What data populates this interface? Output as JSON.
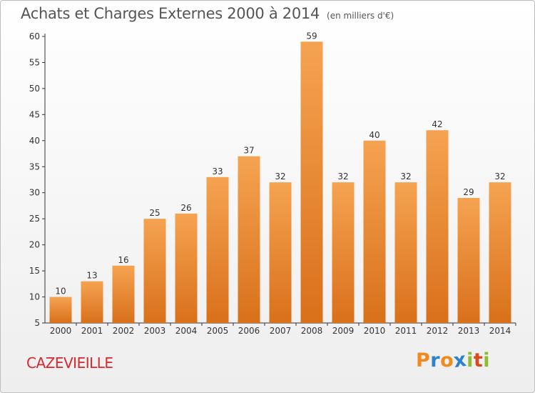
{
  "title": "Achats et Charges Externes 2000 à 2014",
  "unit_note": "(en milliers d'€)",
  "commune": "CAZEVIEILLE",
  "brand": {
    "letters": [
      "P",
      "r",
      "o",
      "x",
      "i",
      "t",
      "i"
    ],
    "colors": [
      "#f08a1c",
      "#2f82c9",
      "#f08a1c",
      "#2f82c9",
      "#8bbd2d",
      "#d94a1e",
      "#8bbd2d"
    ]
  },
  "colors": {
    "bar_top": "#f5a351",
    "bar_bottom": "#d9701a",
    "axis": "#333333",
    "grid": "#cccccc",
    "commune": "#d9272e"
  },
  "chart_data": {
    "type": "bar",
    "title": "Achats et Charges Externes 2000 à 2014",
    "xlabel": "",
    "ylabel": "",
    "categories": [
      "2000",
      "2001",
      "2002",
      "2003",
      "2004",
      "2005",
      "2006",
      "2007",
      "2008",
      "2009",
      "2010",
      "2011",
      "2012",
      "2013",
      "2014"
    ],
    "values": [
      10,
      13,
      16,
      25,
      26,
      33,
      37,
      32,
      59,
      32,
      40,
      32,
      42,
      29,
      32
    ],
    "ylim": [
      5,
      60
    ],
    "yticks": [
      5,
      10,
      15,
      20,
      25,
      30,
      35,
      40,
      45,
      50,
      55,
      60
    ],
    "grid": false,
    "data_labels": true
  }
}
